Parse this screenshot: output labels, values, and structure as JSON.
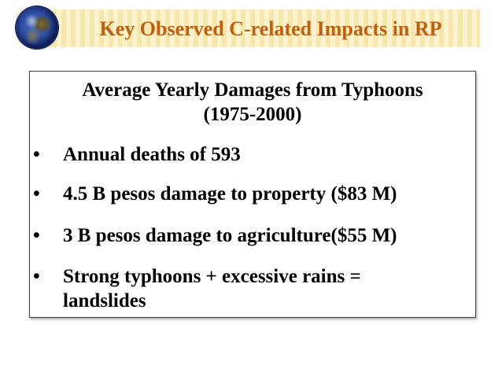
{
  "slide": {
    "title": "Key Observed C-related Impacts in RP",
    "heading_line1": "Average Yearly Damages from Typhoons",
    "heading_line2": "(1975-2000)",
    "bullet_symbol": "•",
    "bullets": [
      "Annual deaths of 593",
      "4.5 B pesos damage to property ($83 M)",
      "3 B pesos damage to agriculture($55 M)",
      "Strong typhoons + excessive rains = landslides"
    ]
  },
  "icons": {
    "header_icon": "globe-icon"
  },
  "colors": {
    "title_text": "#c0600e",
    "title_band": "#f6e7ae",
    "body_text": "#000000"
  }
}
